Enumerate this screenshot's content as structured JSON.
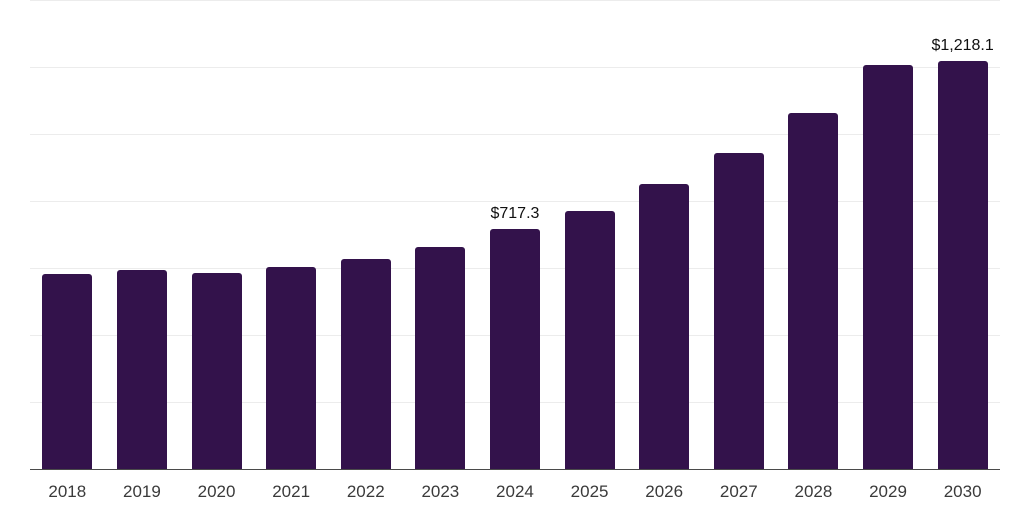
{
  "chart_data": {
    "type": "bar",
    "categories": [
      "2018",
      "2019",
      "2020",
      "2021",
      "2022",
      "2023",
      "2024",
      "2025",
      "2026",
      "2027",
      "2028",
      "2029",
      "2030"
    ],
    "values": [
      583,
      595,
      586,
      604,
      628,
      664,
      717.3,
      771,
      851,
      943,
      1062,
      1206,
      1218.1
    ],
    "data_labels": [
      "",
      "",
      "",
      "",
      "",
      "",
      "$717.3",
      "",
      "",
      "",
      "",
      "",
      "$1,218.1"
    ],
    "ylim": [
      0,
      1400
    ],
    "gridline_interval": 200,
    "grid": true,
    "legend": false,
    "xlabel": "",
    "ylabel": "",
    "colors": {
      "bar": "#33124B",
      "gridline": "#ECECEC",
      "axis_line": "#4A4A4A",
      "x_label": "#3A3A3A",
      "value_label": "#101010",
      "background": "#FFFFFF"
    }
  }
}
